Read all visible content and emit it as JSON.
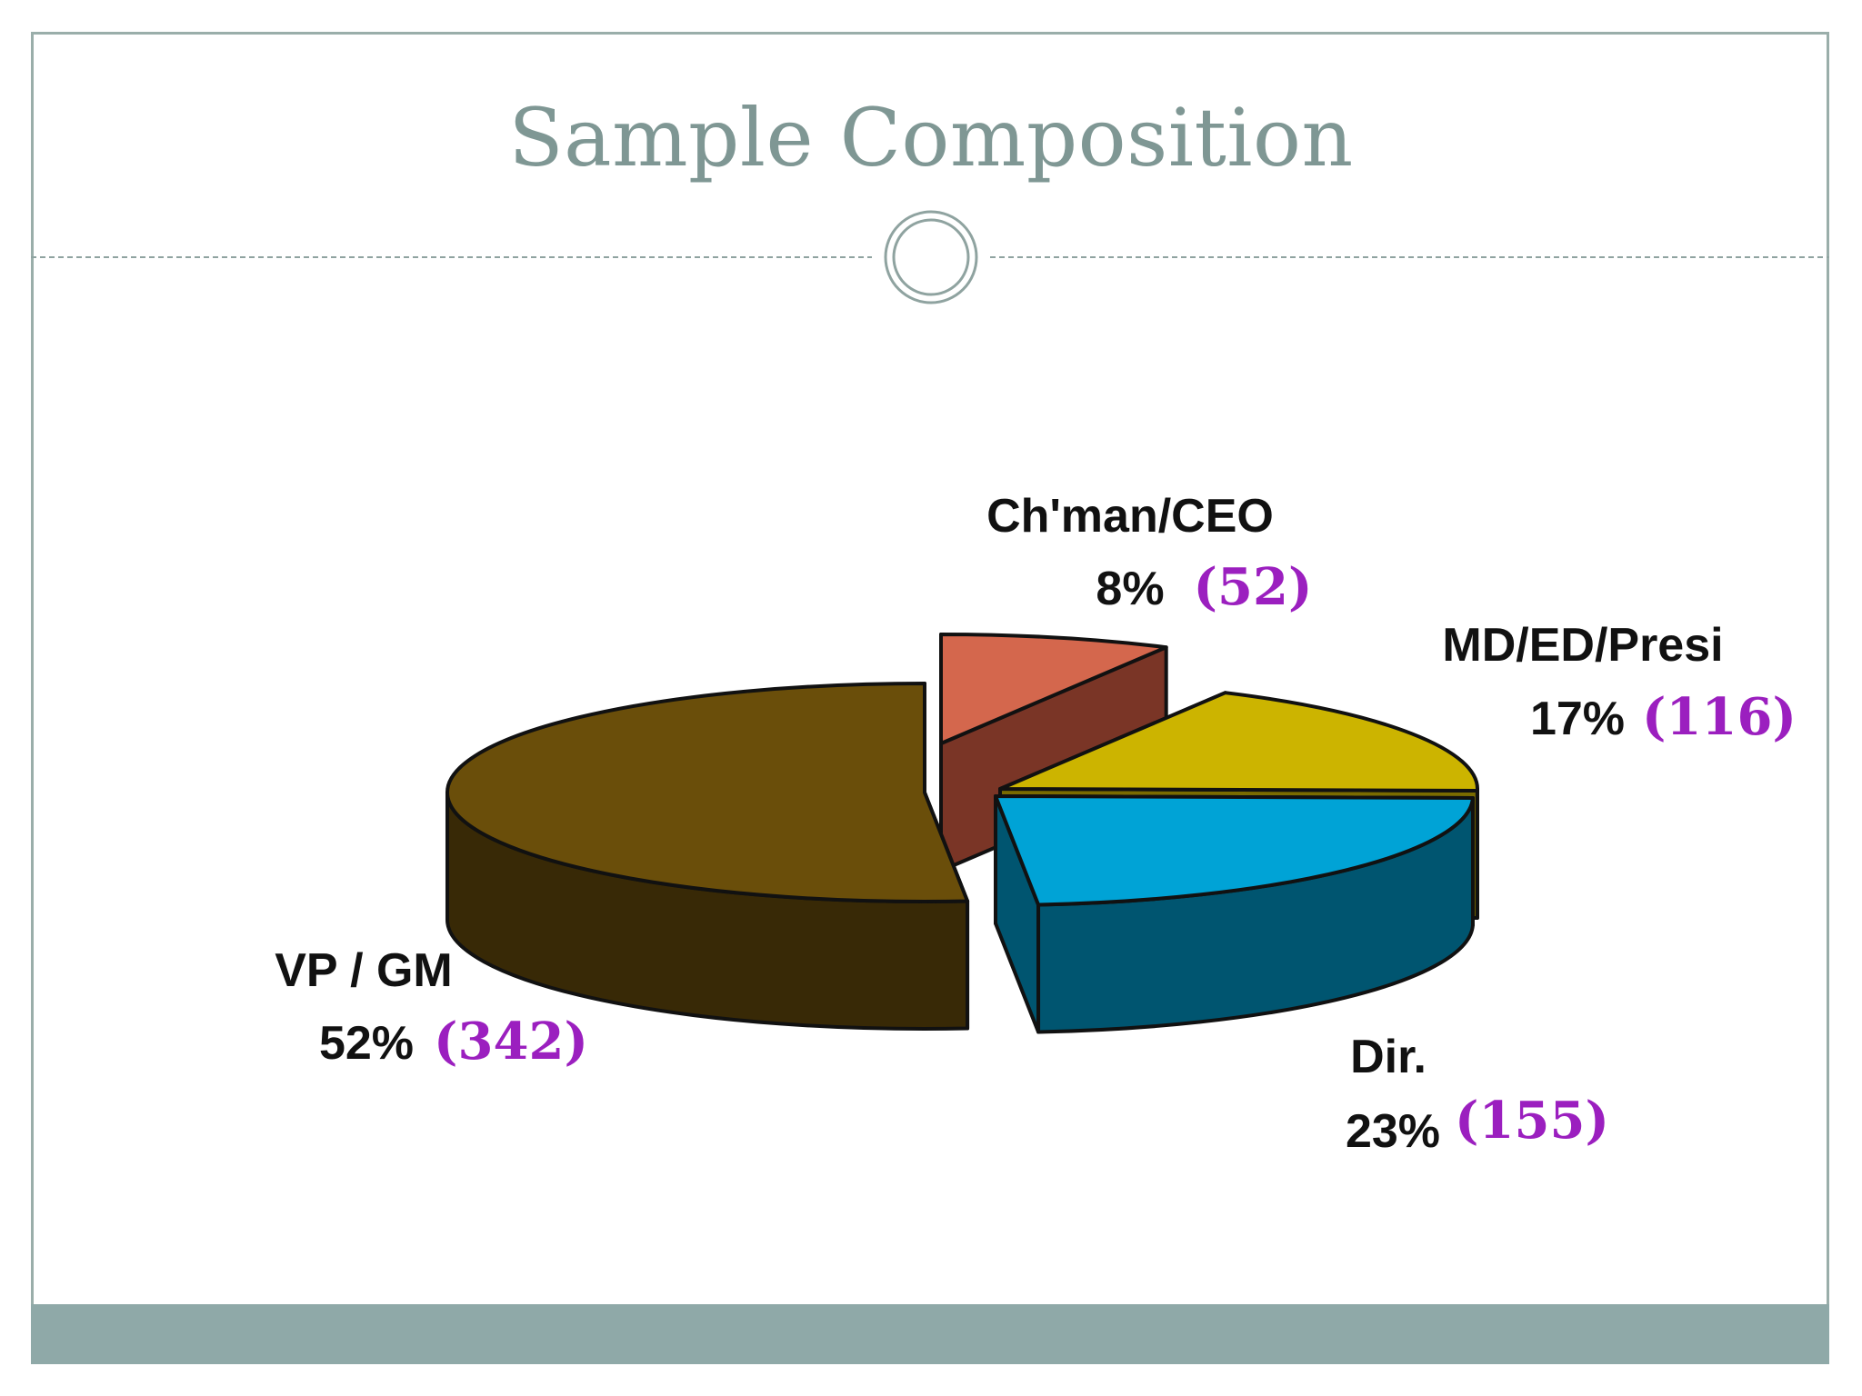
{
  "slide": {
    "title": "Sample Composition"
  },
  "colors": {
    "title": "#7f9794",
    "frame": "#9aaeaa",
    "band": "#8fa9a8",
    "count_text": "#9b1fbf"
  },
  "chart_data": {
    "type": "pie",
    "style": "3d-exploded",
    "title": "",
    "slices": [
      {
        "label": "Ch'man/CEO",
        "percent_label": "8%",
        "count_label": "(52)",
        "value": 52,
        "percent": 8,
        "top_color": "#d4674d",
        "side_color": "#7a3526"
      },
      {
        "label": "MD/ED/Presi",
        "percent_label": "17%",
        "count_label": "(116)",
        "value": 116,
        "percent": 17,
        "top_color": "#ccb400",
        "side_color": "#7a6b00"
      },
      {
        "label": "Dir.",
        "percent_label": "23%",
        "count_label": "(155)",
        "value": 155,
        "percent": 23,
        "top_color": "#00a3d6",
        "side_color": "#005570"
      },
      {
        "label": "VP / GM",
        "percent_label": "52%",
        "count_label": "(342)",
        "value": 342,
        "percent": 52,
        "top_color": "#6a4e0a",
        "side_color": "#382906"
      }
    ]
  }
}
